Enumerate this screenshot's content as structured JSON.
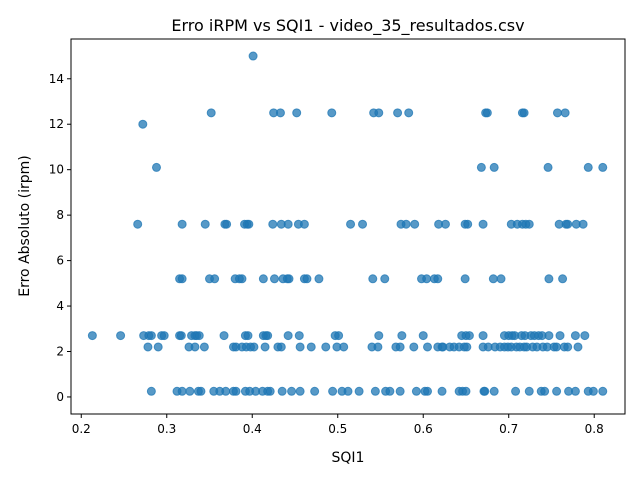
{
  "chart_data": {
    "type": "scatter",
    "title": "Erro iRPM vs SQI1 - video_35_resultados.csv",
    "xlabel": "SQI1",
    "ylabel": "Erro Absoluto (irpm)",
    "xlim": [
      0.188,
      0.836
    ],
    "ylim": [
      -0.75,
      15.75
    ],
    "x_ticks": [
      "0.2",
      "0.3",
      "0.4",
      "0.5",
      "0.6",
      "0.7",
      "0.8"
    ],
    "y_ticks": [
      "0",
      "2",
      "4",
      "6",
      "8",
      "10",
      "12",
      "14"
    ],
    "grid": false,
    "color": "#1f77b4",
    "marker_alpha": 0.75,
    "series": [
      {
        "points": [
          [
            0.401,
            15.0
          ],
          [
            0.272,
            12.0
          ],
          [
            0.352,
            12.5
          ],
          [
            0.425,
            12.5
          ],
          [
            0.433,
            12.5
          ],
          [
            0.452,
            12.5
          ],
          [
            0.493,
            12.5
          ],
          [
            0.542,
            12.5
          ],
          [
            0.548,
            12.5
          ],
          [
            0.57,
            12.5
          ],
          [
            0.583,
            12.5
          ],
          [
            0.673,
            12.5
          ],
          [
            0.675,
            12.5
          ],
          [
            0.716,
            12.5
          ],
          [
            0.718,
            12.5
          ],
          [
            0.757,
            12.5
          ],
          [
            0.766,
            12.5
          ],
          [
            0.288,
            10.1
          ],
          [
            0.668,
            10.1
          ],
          [
            0.683,
            10.1
          ],
          [
            0.746,
            10.1
          ],
          [
            0.793,
            10.1
          ],
          [
            0.81,
            10.1
          ],
          [
            0.266,
            7.6
          ],
          [
            0.318,
            7.6
          ],
          [
            0.345,
            7.6
          ],
          [
            0.368,
            7.6
          ],
          [
            0.37,
            7.6
          ],
          [
            0.391,
            7.6
          ],
          [
            0.394,
            7.6
          ],
          [
            0.396,
            7.6
          ],
          [
            0.424,
            7.6
          ],
          [
            0.434,
            7.6
          ],
          [
            0.442,
            7.6
          ],
          [
            0.454,
            7.6
          ],
          [
            0.461,
            7.6
          ],
          [
            0.515,
            7.6
          ],
          [
            0.529,
            7.6
          ],
          [
            0.574,
            7.6
          ],
          [
            0.58,
            7.6
          ],
          [
            0.59,
            7.6
          ],
          [
            0.618,
            7.6
          ],
          [
            0.626,
            7.6
          ],
          [
            0.649,
            7.6
          ],
          [
            0.652,
            7.6
          ],
          [
            0.67,
            7.6
          ],
          [
            0.703,
            7.6
          ],
          [
            0.71,
            7.6
          ],
          [
            0.716,
            7.6
          ],
          [
            0.72,
            7.6
          ],
          [
            0.724,
            7.6
          ],
          [
            0.759,
            7.6
          ],
          [
            0.767,
            7.6
          ],
          [
            0.769,
            7.6
          ],
          [
            0.779,
            7.6
          ],
          [
            0.787,
            7.6
          ],
          [
            0.315,
            5.2
          ],
          [
            0.318,
            5.2
          ],
          [
            0.35,
            5.2
          ],
          [
            0.356,
            5.2
          ],
          [
            0.38,
            5.2
          ],
          [
            0.385,
            5.2
          ],
          [
            0.388,
            5.2
          ],
          [
            0.413,
            5.2
          ],
          [
            0.426,
            5.2
          ],
          [
            0.436,
            5.2
          ],
          [
            0.441,
            5.2
          ],
          [
            0.443,
            5.2
          ],
          [
            0.461,
            5.2
          ],
          [
            0.464,
            5.2
          ],
          [
            0.478,
            5.2
          ],
          [
            0.541,
            5.2
          ],
          [
            0.555,
            5.2
          ],
          [
            0.598,
            5.2
          ],
          [
            0.604,
            5.2
          ],
          [
            0.613,
            5.2
          ],
          [
            0.617,
            5.2
          ],
          [
            0.649,
            5.2
          ],
          [
            0.682,
            5.2
          ],
          [
            0.691,
            5.2
          ],
          [
            0.747,
            5.2
          ],
          [
            0.763,
            5.2
          ],
          [
            0.213,
            2.7
          ],
          [
            0.246,
            2.7
          ],
          [
            0.273,
            2.7
          ],
          [
            0.279,
            2.7
          ],
          [
            0.282,
            2.7
          ],
          [
            0.294,
            2.7
          ],
          [
            0.297,
            2.7
          ],
          [
            0.315,
            2.7
          ],
          [
            0.317,
            2.7
          ],
          [
            0.329,
            2.7
          ],
          [
            0.333,
            2.7
          ],
          [
            0.335,
            2.7
          ],
          [
            0.338,
            2.7
          ],
          [
            0.367,
            2.7
          ],
          [
            0.392,
            2.7
          ],
          [
            0.395,
            2.7
          ],
          [
            0.413,
            2.7
          ],
          [
            0.416,
            2.7
          ],
          [
            0.418,
            2.7
          ],
          [
            0.442,
            2.7
          ],
          [
            0.455,
            2.7
          ],
          [
            0.497,
            2.7
          ],
          [
            0.501,
            2.7
          ],
          [
            0.548,
            2.7
          ],
          [
            0.575,
            2.7
          ],
          [
            0.6,
            2.7
          ],
          [
            0.645,
            2.7
          ],
          [
            0.65,
            2.7
          ],
          [
            0.654,
            2.7
          ],
          [
            0.67,
            2.7
          ],
          [
            0.695,
            2.7
          ],
          [
            0.7,
            2.7
          ],
          [
            0.704,
            2.7
          ],
          [
            0.707,
            2.7
          ],
          [
            0.715,
            2.7
          ],
          [
            0.719,
            2.7
          ],
          [
            0.726,
            2.7
          ],
          [
            0.73,
            2.7
          ],
          [
            0.735,
            2.7
          ],
          [
            0.739,
            2.7
          ],
          [
            0.747,
            2.7
          ],
          [
            0.76,
            2.7
          ],
          [
            0.778,
            2.7
          ],
          [
            0.789,
            2.7
          ],
          [
            0.278,
            2.2
          ],
          [
            0.29,
            2.2
          ],
          [
            0.326,
            2.2
          ],
          [
            0.333,
            2.2
          ],
          [
            0.344,
            2.2
          ],
          [
            0.378,
            2.2
          ],
          [
            0.381,
            2.2
          ],
          [
            0.388,
            2.2
          ],
          [
            0.393,
            2.2
          ],
          [
            0.398,
            2.2
          ],
          [
            0.402,
            2.2
          ],
          [
            0.415,
            2.2
          ],
          [
            0.43,
            2.2
          ],
          [
            0.434,
            2.2
          ],
          [
            0.456,
            2.2
          ],
          [
            0.469,
            2.2
          ],
          [
            0.486,
            2.2
          ],
          [
            0.499,
            2.2
          ],
          [
            0.507,
            2.2
          ],
          [
            0.54,
            2.2
          ],
          [
            0.547,
            2.2
          ],
          [
            0.568,
            2.2
          ],
          [
            0.573,
            2.2
          ],
          [
            0.589,
            2.2
          ],
          [
            0.605,
            2.2
          ],
          [
            0.617,
            2.2
          ],
          [
            0.622,
            2.2
          ],
          [
            0.623,
            2.2
          ],
          [
            0.631,
            2.2
          ],
          [
            0.636,
            2.2
          ],
          [
            0.642,
            2.2
          ],
          [
            0.648,
            2.2
          ],
          [
            0.651,
            2.2
          ],
          [
            0.67,
            2.2
          ],
          [
            0.676,
            2.2
          ],
          [
            0.684,
            2.2
          ],
          [
            0.69,
            2.2
          ],
          [
            0.695,
            2.2
          ],
          [
            0.699,
            2.2
          ],
          [
            0.703,
            2.2
          ],
          [
            0.709,
            2.2
          ],
          [
            0.713,
            2.2
          ],
          [
            0.718,
            2.2
          ],
          [
            0.721,
            2.2
          ],
          [
            0.728,
            2.2
          ],
          [
            0.733,
            2.2
          ],
          [
            0.74,
            2.2
          ],
          [
            0.745,
            2.2
          ],
          [
            0.753,
            2.2
          ],
          [
            0.756,
            2.2
          ],
          [
            0.765,
            2.2
          ],
          [
            0.769,
            2.2
          ],
          [
            0.781,
            2.2
          ],
          [
            0.282,
            0.25
          ],
          [
            0.312,
            0.25
          ],
          [
            0.318,
            0.25
          ],
          [
            0.327,
            0.25
          ],
          [
            0.337,
            0.25
          ],
          [
            0.34,
            0.25
          ],
          [
            0.355,
            0.25
          ],
          [
            0.362,
            0.25
          ],
          [
            0.369,
            0.25
          ],
          [
            0.378,
            0.25
          ],
          [
            0.381,
            0.25
          ],
          [
            0.392,
            0.25
          ],
          [
            0.397,
            0.25
          ],
          [
            0.404,
            0.25
          ],
          [
            0.412,
            0.25
          ],
          [
            0.418,
            0.25
          ],
          [
            0.421,
            0.25
          ],
          [
            0.435,
            0.25
          ],
          [
            0.446,
            0.25
          ],
          [
            0.456,
            0.25
          ],
          [
            0.473,
            0.25
          ],
          [
            0.494,
            0.25
          ],
          [
            0.505,
            0.25
          ],
          [
            0.512,
            0.25
          ],
          [
            0.525,
            0.25
          ],
          [
            0.544,
            0.25
          ],
          [
            0.556,
            0.25
          ],
          [
            0.561,
            0.25
          ],
          [
            0.573,
            0.25
          ],
          [
            0.592,
            0.25
          ],
          [
            0.602,
            0.25
          ],
          [
            0.605,
            0.25
          ],
          [
            0.622,
            0.25
          ],
          [
            0.642,
            0.25
          ],
          [
            0.646,
            0.25
          ],
          [
            0.65,
            0.25
          ],
          [
            0.671,
            0.25
          ],
          [
            0.672,
            0.25
          ],
          [
            0.683,
            0.25
          ],
          [
            0.708,
            0.25
          ],
          [
            0.724,
            0.25
          ],
          [
            0.738,
            0.25
          ],
          [
            0.742,
            0.25
          ],
          [
            0.756,
            0.25
          ],
          [
            0.77,
            0.25
          ],
          [
            0.778,
            0.25
          ],
          [
            0.793,
            0.25
          ],
          [
            0.799,
            0.25
          ],
          [
            0.81,
            0.25
          ]
        ]
      }
    ]
  }
}
